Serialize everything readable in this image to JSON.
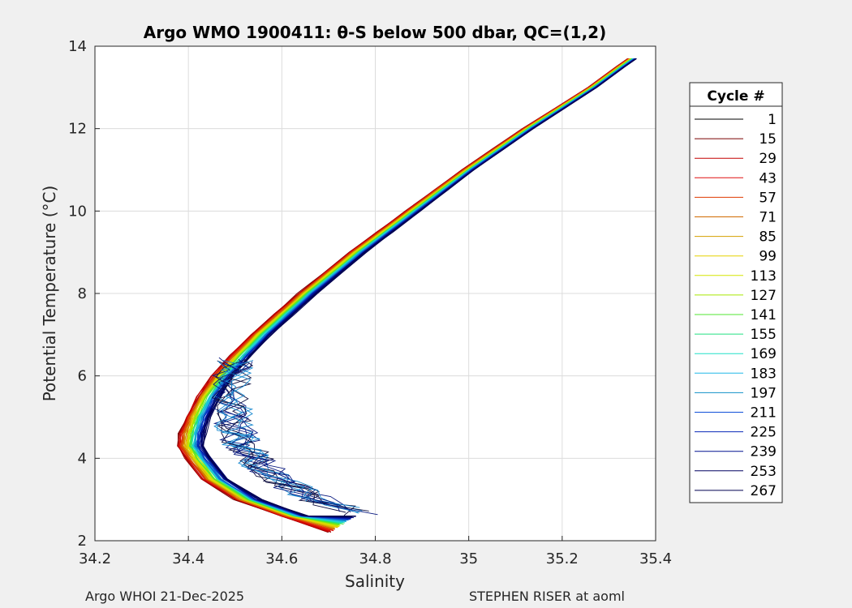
{
  "chart_data": {
    "type": "line",
    "title": "Argo WMO 1900411: θ-S below 500 dbar,  QC=(1,2)",
    "xlabel": "Salinity",
    "ylabel": "Potential Temperature (°C)",
    "xlim": [
      34.2,
      35.4
    ],
    "ylim": [
      2,
      14
    ],
    "xticks": [
      "34.2",
      "34.4",
      "34.6",
      "34.8",
      "35",
      "35.2",
      "35.4"
    ],
    "yticks": [
      "2",
      "4",
      "6",
      "8",
      "10",
      "12",
      "14"
    ],
    "grid": true,
    "legend": {
      "title": "Cycle #",
      "placement": "right",
      "entries": [
        {
          "label": "1",
          "color": "#000000"
        },
        {
          "label": "15",
          "color": "#7a0000"
        },
        {
          "label": "29",
          "color": "#c40000"
        },
        {
          "label": "43",
          "color": "#e01010"
        },
        {
          "label": "57",
          "color": "#e03a00"
        },
        {
          "label": "71",
          "color": "#d06a00"
        },
        {
          "label": "85",
          "color": "#d4a000"
        },
        {
          "label": "99",
          "color": "#e6d200"
        },
        {
          "label": "113",
          "color": "#d6e600"
        },
        {
          "label": "127",
          "color": "#a6e600"
        },
        {
          "label": "141",
          "color": "#50e630"
        },
        {
          "label": "155",
          "color": "#20e080"
        },
        {
          "label": "169",
          "color": "#20e0c8"
        },
        {
          "label": "183",
          "color": "#20b8e8"
        },
        {
          "label": "197",
          "color": "#1090c8"
        },
        {
          "label": "211",
          "color": "#1050d8"
        },
        {
          "label": "225",
          "color": "#0828b8"
        },
        {
          "label": "239",
          "color": "#001090"
        },
        {
          "label": "253",
          "color": "#000060"
        },
        {
          "label": "267",
          "color": "#000050"
        }
      ]
    },
    "profile_shape": {
      "theta": [
        2.2,
        2.6,
        3.0,
        3.5,
        4.0,
        4.3,
        4.6,
        5.0,
        5.5,
        6.0,
        6.5,
        7.0,
        7.5,
        8.0,
        8.5,
        9.0,
        9.5,
        10.0,
        10.5,
        11.0,
        11.5,
        12.0,
        12.5,
        13.0,
        13.5,
        13.7
      ],
      "salinity_red": [
        34.7,
        34.6,
        34.5,
        34.43,
        34.395,
        34.378,
        34.382,
        34.395,
        34.418,
        34.45,
        34.49,
        34.535,
        34.585,
        34.635,
        34.69,
        34.745,
        34.805,
        34.865,
        34.925,
        34.985,
        35.05,
        35.115,
        35.185,
        35.255,
        35.315,
        35.34
      ],
      "salinity_blue_offset": 0.055
    }
  },
  "footer": {
    "left": "Argo WHOI 21-Dec-2025",
    "right": "STEPHEN RISER at aoml"
  }
}
